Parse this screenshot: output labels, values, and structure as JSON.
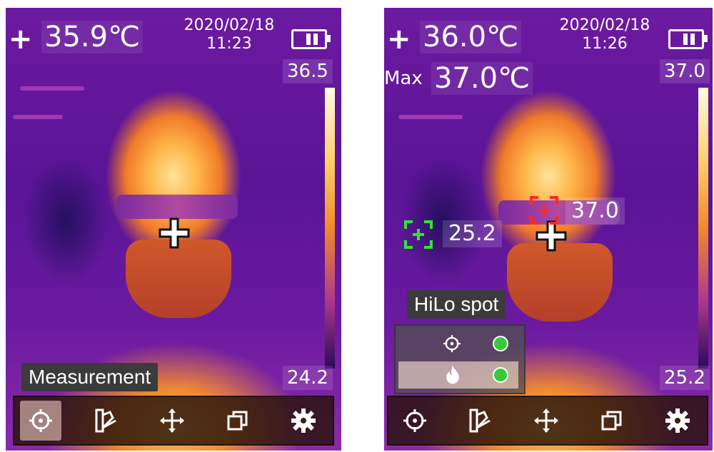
{
  "left": {
    "center_temp": "35.9℃",
    "date": "2020/02/18",
    "time": "11:23",
    "scale_max": "36.5",
    "scale_min": "24.2",
    "mode_label": "Measurement",
    "battery_icon": "battery-icon",
    "active_tool": "measurement"
  },
  "right": {
    "center_temp": "36.0℃",
    "date": "2020/02/18",
    "time": "11:26",
    "max_label": "Max",
    "max_temp": "37.0℃",
    "scale_max": "37.0",
    "scale_min": "25.2",
    "hot_spot_value": "37.0",
    "cold_spot_value": "25.2",
    "mode_label": "HiLo spot",
    "hilo_rows": [
      {
        "icon": "target-icon",
        "enabled": true
      },
      {
        "icon": "flame-icon",
        "enabled": true
      }
    ]
  },
  "toolbar_icons": [
    "measurement-target-icon",
    "palette-icon",
    "move-arrows-icon",
    "layers-icon",
    "gear-icon"
  ],
  "colors": {
    "hot_spot": "#ff2a2a",
    "cold_spot": "#2ee82e",
    "toggle_on": "#38c838"
  }
}
